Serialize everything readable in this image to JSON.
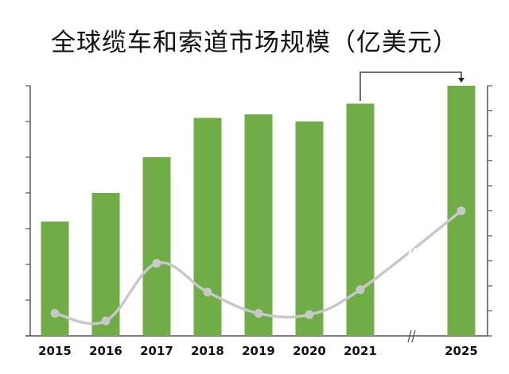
{
  "chart_data": {
    "type": "bar+line",
    "title": "全球缆车和索道市场规模（亿美元）",
    "categories": [
      "2015",
      "2016",
      "2017",
      "2018",
      "2019",
      "2020",
      "2021",
      "2025"
    ],
    "series": [
      {
        "type": "bar",
        "axis": "left",
        "color": "#70ad47",
        "values": [
          3.2,
          4.0,
          5.0,
          6.1,
          6.2,
          6.0,
          6.5,
          7.0
        ]
      },
      {
        "type": "line",
        "axis": "right",
        "color": "#c8c8c8",
        "values": [
          0.9,
          0.6,
          2.9,
          1.75,
          0.9,
          0.85,
          1.85,
          5.0
        ]
      }
    ],
    "left_axis": {
      "ylim": [
        0,
        7
      ],
      "tick_labels_shown": false
    },
    "right_axis": {
      "ylim": [
        0,
        10
      ],
      "tick_labels_shown": false
    },
    "axis_break_between": [
      "2021",
      "2025"
    ],
    "annotation": "arrow from 2021 to 2025",
    "grid": false,
    "legend": "none"
  }
}
